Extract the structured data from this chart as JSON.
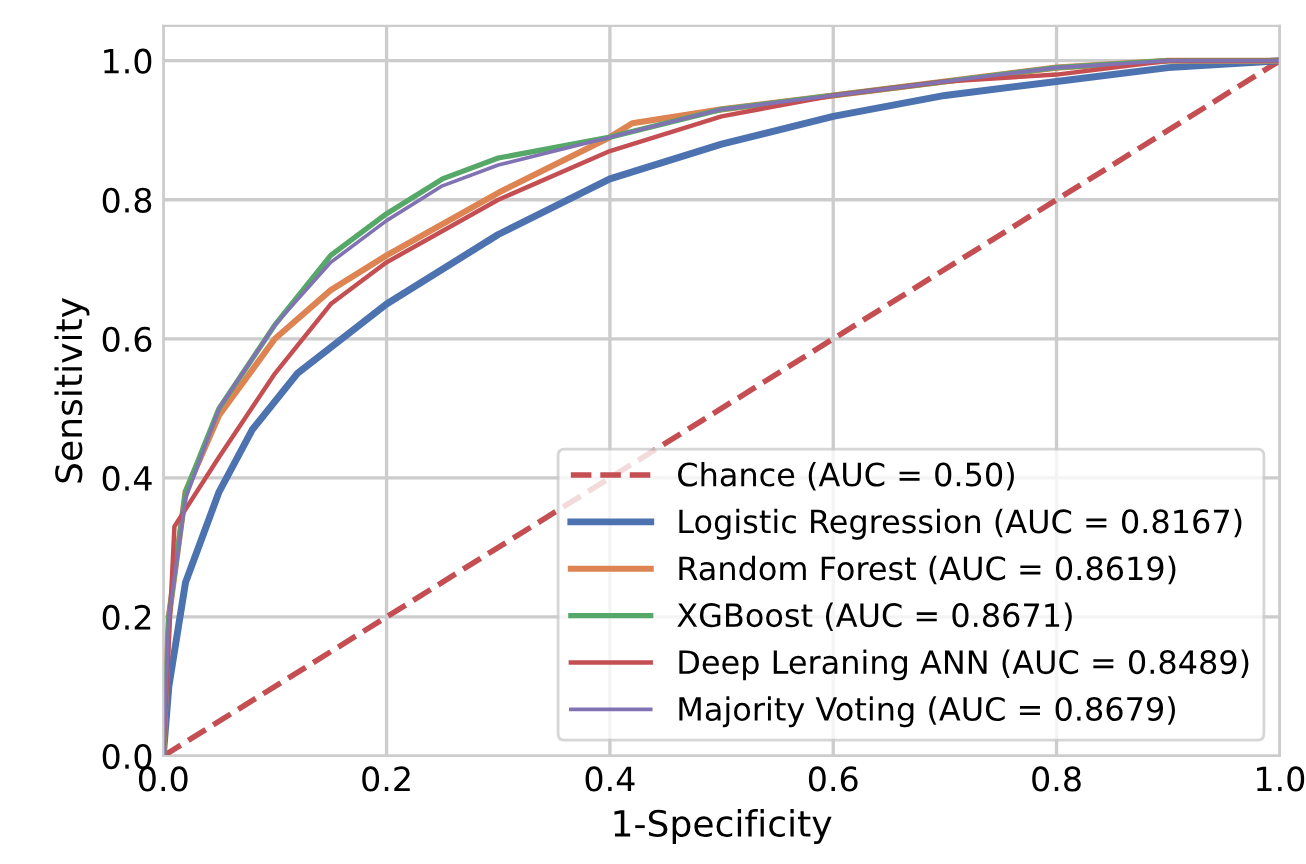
{
  "chart_data": {
    "type": "line",
    "xlabel": "1-Specificity",
    "ylabel": "Sensitivity",
    "xlim": [
      0.0,
      1.0
    ],
    "ylim": [
      0.0,
      1.05
    ],
    "xticks": [
      {
        "value": 0,
        "label": "0.0"
      },
      0.2,
      0.4,
      0.6,
      0.8,
      {
        "value": 1,
        "label": "1.0"
      }
    ],
    "yticks": [
      {
        "value": 0,
        "label": "0.0"
      },
      0.2,
      0.4,
      0.6,
      0.8,
      {
        "value": 1,
        "label": "1.0"
      }
    ],
    "grid": true,
    "legend": "bottom right",
    "series": [
      {
        "name": "Chance (AUC = 0.50)",
        "color": "#c44e52",
        "line_style": "dashed",
        "x": [
          0,
          1
        ],
        "values": [
          0,
          1
        ]
      },
      {
        "name": "Logistic Regression (AUC = 0.8167)",
        "color": "#4c72b0",
        "x": [
          0,
          0.005,
          0.02,
          0.05,
          0.08,
          0.12,
          0.2,
          0.3,
          0.4,
          0.5,
          0.6,
          0.7,
          0.8,
          0.9,
          1
        ],
        "values": [
          0,
          0.1,
          0.25,
          0.38,
          0.47,
          0.55,
          0.65,
          0.75,
          0.83,
          0.88,
          0.92,
          0.95,
          0.97,
          0.99,
          1
        ]
      },
      {
        "name": "Random Forest (AUC = 0.8619)",
        "color": "#dd8452",
        "x": [
          0,
          0.005,
          0.02,
          0.05,
          0.1,
          0.15,
          0.2,
          0.3,
          0.4,
          0.42,
          0.5,
          0.6,
          0.7,
          0.8,
          0.9,
          1
        ],
        "values": [
          0,
          0.2,
          0.38,
          0.49,
          0.6,
          0.67,
          0.72,
          0.81,
          0.89,
          0.91,
          0.93,
          0.95,
          0.97,
          0.99,
          1,
          1
        ]
      },
      {
        "name": "XGBoost (AUC = 0.8671)",
        "color": "#55a868",
        "x": [
          0,
          0.005,
          0.02,
          0.05,
          0.1,
          0.15,
          0.2,
          0.25,
          0.3,
          0.4,
          0.5,
          0.6,
          0.7,
          0.8,
          0.9,
          1
        ],
        "values": [
          0,
          0.2,
          0.38,
          0.5,
          0.62,
          0.72,
          0.78,
          0.83,
          0.86,
          0.89,
          0.93,
          0.95,
          0.97,
          0.99,
          1,
          1
        ]
      },
      {
        "name": "Deep Leraning ANN (AUC = 0.8489)",
        "color": "#c44e52",
        "x": [
          0,
          0.01,
          0.05,
          0.1,
          0.15,
          0.2,
          0.3,
          0.4,
          0.5,
          0.6,
          0.7,
          0.8,
          0.9,
          1
        ],
        "values": [
          0,
          0.33,
          0.43,
          0.55,
          0.65,
          0.71,
          0.8,
          0.87,
          0.92,
          0.95,
          0.97,
          0.98,
          1,
          1
        ]
      },
      {
        "name": "Majority Voting (AUC = 0.8679)",
        "color": "#8172b3",
        "x": [
          0,
          0.005,
          0.02,
          0.05,
          0.1,
          0.15,
          0.2,
          0.25,
          0.3,
          0.4,
          0.5,
          0.6,
          0.7,
          0.8,
          0.9,
          1
        ],
        "values": [
          0,
          0.2,
          0.37,
          0.5,
          0.62,
          0.71,
          0.77,
          0.82,
          0.85,
          0.89,
          0.93,
          0.95,
          0.97,
          0.99,
          1,
          1
        ]
      }
    ]
  }
}
